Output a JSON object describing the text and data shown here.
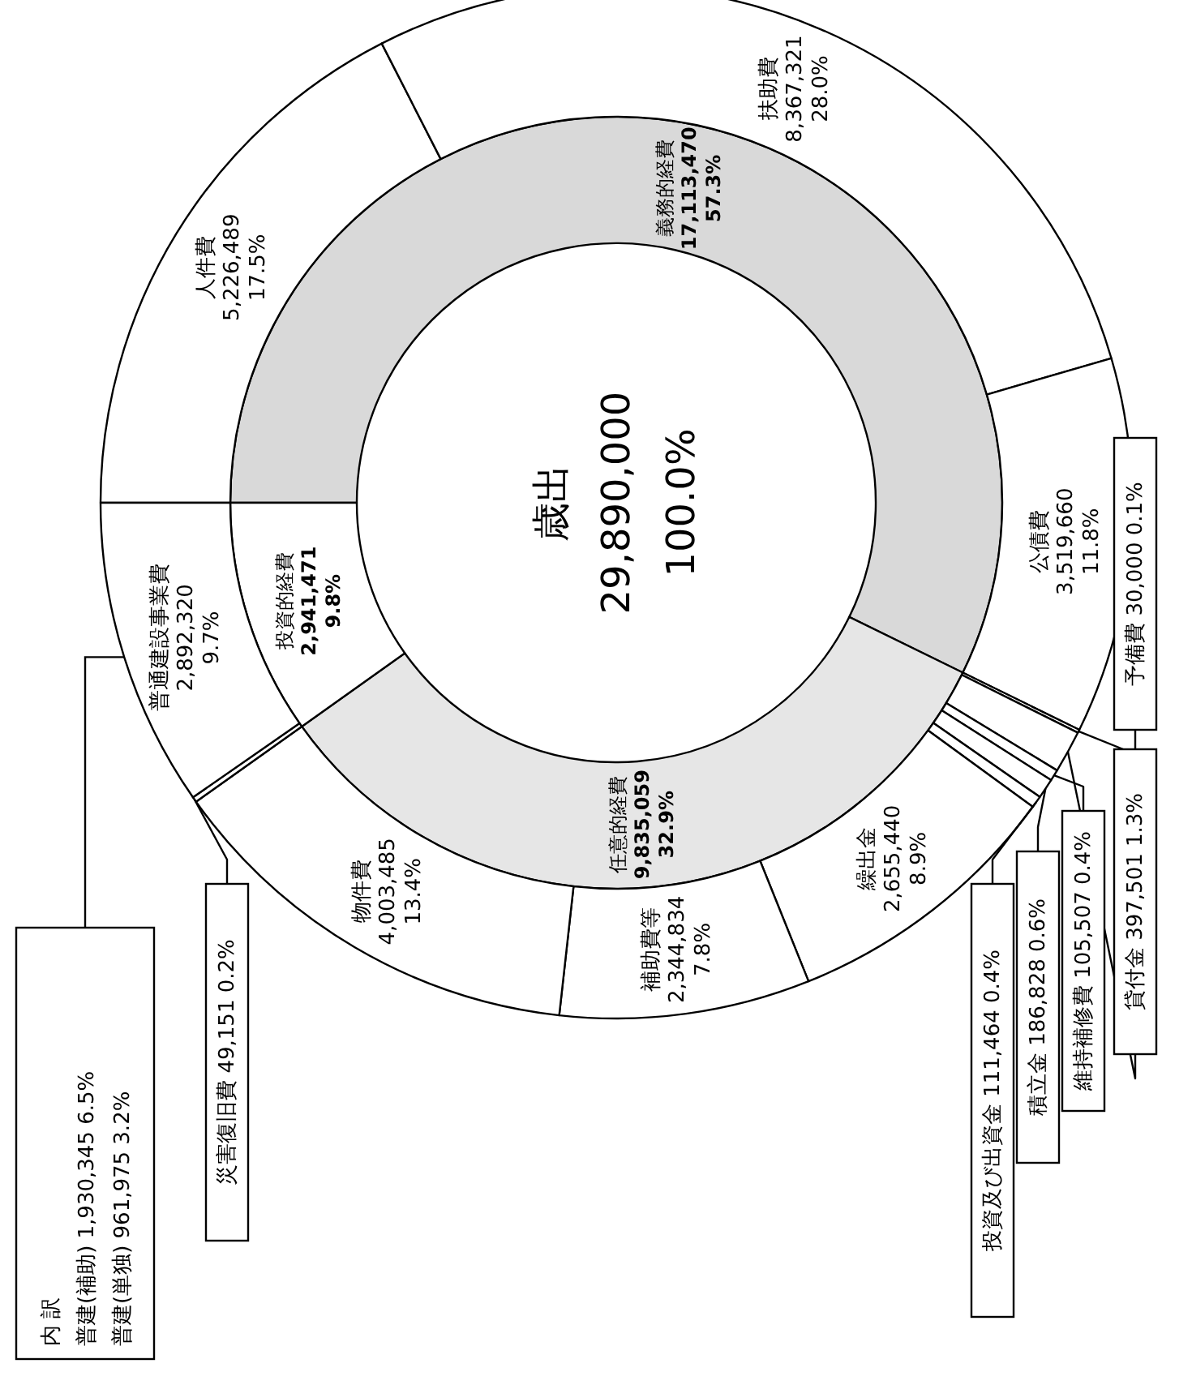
{
  "chart_data": [
    {
      "type": "donut",
      "title": "歳出",
      "annotations": [
        "29,890,000",
        "100.0%"
      ],
      "categories": [
        "義務的経費",
        "任意的経費",
        "投資的経費"
      ],
      "values": [
        17113470,
        9835059,
        2941471
      ],
      "colors": [
        "#d9d9d9",
        "#e6e6e6",
        "#ffffff"
      ],
      "value_labels": [
        "17,113,470\n57.3%",
        "9,835,059\n32.9%",
        "2,941,471\n9.8%"
      ]
    },
    {
      "type": "donut",
      "annotations": [
        "内 訳",
        "普建(補助)  1,930,345  6.5%",
        "普建(単独)  961,975  3.2%"
      ],
      "categories": [
        "人件費",
        "扶助費",
        "公債費",
        "予備費",
        "貸付金",
        "維持補修費",
        "積立金",
        "投資及び出資金",
        "繰出金",
        "補助費等",
        "物件費",
        "災害復旧費",
        "普通建設事業費"
      ],
      "values": [
        5226489,
        8367321,
        3519660,
        30000,
        397501,
        105507,
        186828,
        111464,
        2655440,
        2344834,
        4003485,
        49151,
        2892320
      ],
      "colors": [
        "#ffffff",
        "#ffffff",
        "#ffffff",
        "#ffffff",
        "#ffffff",
        "#ffffff",
        "#ffffff",
        "#ffffff",
        "#ffffff",
        "#ffffff",
        "#ffffff",
        "#ffffff",
        "#ffffff"
      ],
      "value_labels": [
        "5,226,489\n17.5%",
        "8,367,321\n28.0%",
        "3,519,660\n11.8%",
        "30,000\n0.1%",
        "397,501\n1.3%",
        "105,507\n0.4%",
        "186,828\n0.6%",
        "111,464\n0.4%",
        "2,655,440\n8.9%",
        "2,344,834\n7.8%",
        "4,003,485\n13.4%",
        "49,151\n0.2%",
        "2,892,320\n9.7%"
      ]
    }
  ]
}
